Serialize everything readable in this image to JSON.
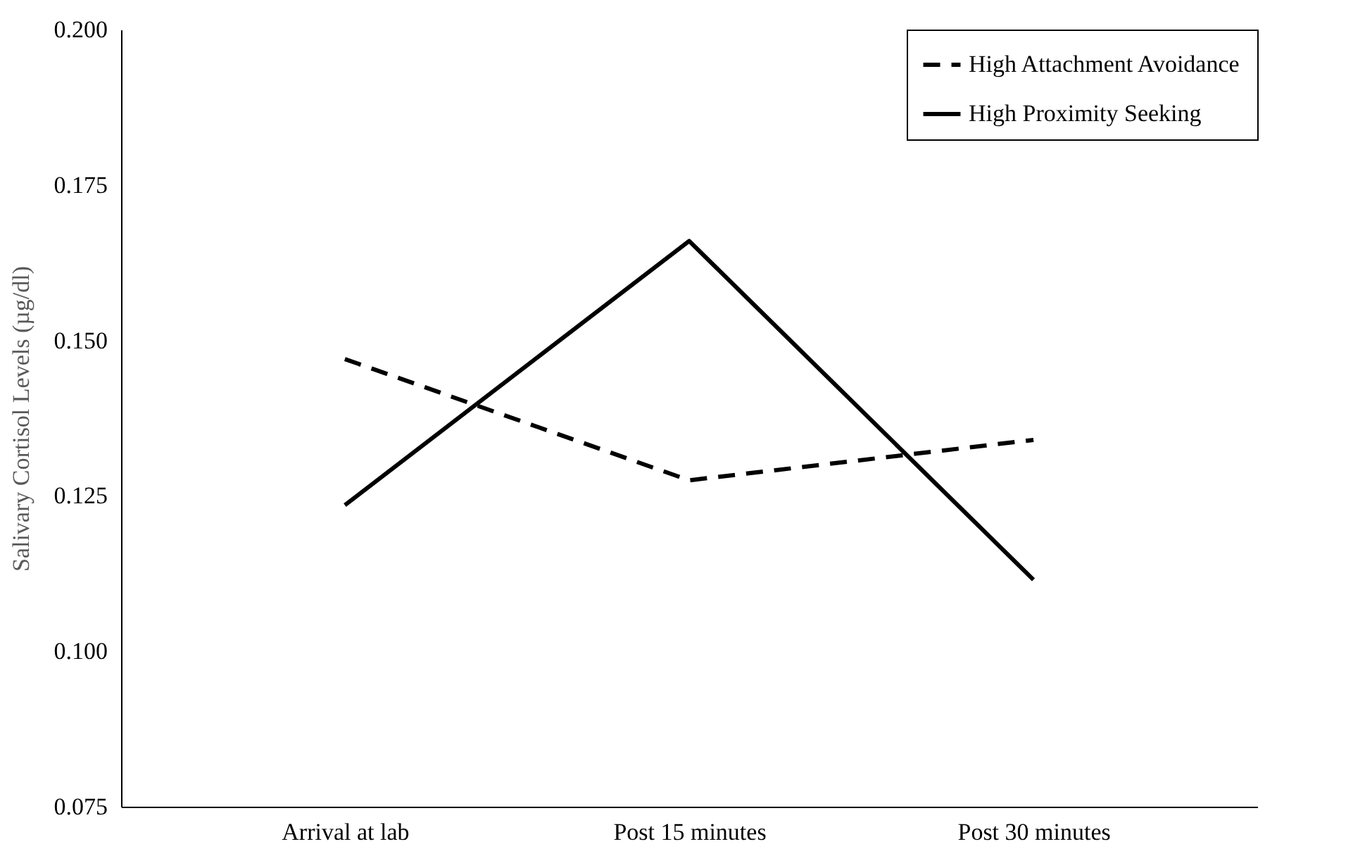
{
  "chart_data": {
    "type": "line",
    "ylabel": "Salivary Cortisol Levels (µg/dl)",
    "categories": [
      "Arrival at lab",
      "Post 15 minutes",
      "Post 30 minutes"
    ],
    "series": [
      {
        "name": "High Attachment Avoidance",
        "color": "#000000",
        "line_style": "dashed",
        "values": [
          0.147,
          0.1275,
          0.134
        ]
      },
      {
        "name": "High Proximity Seeking",
        "color": "#000000",
        "line_style": "solid",
        "values": [
          0.1235,
          0.166,
          0.1115
        ]
      }
    ],
    "ylim": [
      0.075,
      0.2
    ],
    "yticks": [
      {
        "value": 0.075,
        "label": "0.075"
      },
      {
        "value": 0.1,
        "label": "0.100"
      },
      {
        "value": 0.125,
        "label": "0.125"
      },
      {
        "value": 0.15,
        "label": "0.150"
      },
      {
        "value": 0.175,
        "label": "0.175"
      },
      {
        "value": 0.2,
        "label": "0.200"
      }
    ],
    "grid": false,
    "legend": "top right",
    "marker": "none"
  }
}
